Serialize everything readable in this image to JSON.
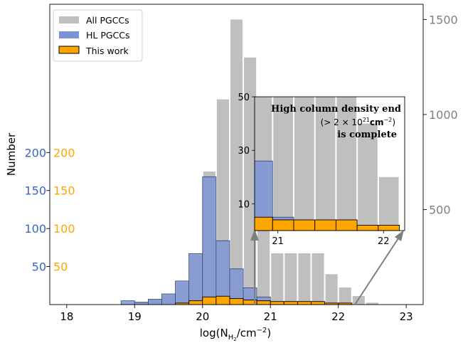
{
  "chart_data": {
    "type": "bar",
    "xlabel_main": "log(N",
    "xlabel_sub": "H",
    "xlabel_subsub": "2",
    "xlabel_tail": "/cm",
    "xlabel_sup": "−2",
    "xlabel_close": ")",
    "ylabel": "Number",
    "x_ticks": [
      "18",
      "19",
      "20",
      "21",
      "22",
      "23"
    ],
    "right_ticks": [
      "500",
      "1000",
      "1500"
    ],
    "hl_ticks": [
      "50",
      "100",
      "150",
      "200"
    ],
    "tw_ticks": [
      "50",
      "100",
      "150",
      "200"
    ],
    "xlim": [
      17.75,
      23.25
    ],
    "ylim_all": [
      0,
      1580
    ],
    "ylim_hl": [
      0,
      395
    ],
    "bin_width": 0.2,
    "colors": {
      "all": "#bfbfbf",
      "hl": "#7b93d6",
      "hl_light": "#a8b8ea",
      "tw": "#ffa500",
      "hl_axis": "#3b63c9",
      "tw_axis": "#ffa500",
      "right_axis": "#7f7f7f",
      "arrow": "#7f7f7f"
    },
    "series": [
      {
        "name": "All PGCCs",
        "x": [
          18.9,
          19.1,
          19.3,
          19.5,
          19.7,
          19.9,
          20.1,
          20.3,
          20.5,
          20.7,
          20.9,
          21.1,
          21.3,
          21.5,
          21.7,
          21.9,
          22.1,
          22.3,
          22.5
        ],
        "values": [
          5,
          15,
          25,
          50,
          115,
          260,
          700,
          1080,
          1500,
          1300,
          750,
          270,
          270,
          270,
          270,
          160,
          90,
          45,
          10
        ]
      },
      {
        "name": "HL PGCCs",
        "x": [
          18.9,
          19.1,
          19.3,
          19.5,
          19.7,
          19.9,
          20.1,
          20.3,
          20.5,
          20.7,
          20.9,
          21.1
        ],
        "values": [
          5,
          3,
          7,
          14,
          31,
          67,
          168,
          84,
          47,
          22,
          10,
          3
        ]
      },
      {
        "name": "This work",
        "x": [
          19.7,
          19.9,
          20.1,
          20.3,
          20.5,
          20.7,
          20.9,
          21.1,
          21.3,
          21.5,
          21.7,
          21.9,
          22.1
        ],
        "values": [
          2,
          5,
          10,
          11,
          8,
          6,
          5,
          4,
          4,
          4,
          4,
          2,
          2
        ]
      }
    ],
    "legend": {
      "placement": "top-left",
      "items": [
        "All PGCCs",
        "HL PGCCs",
        "This work"
      ]
    },
    "inset": {
      "xlim": [
        20.78,
        22.2
      ],
      "ylim": [
        0,
        50
      ],
      "y_ticks": [
        "10",
        "30",
        "50"
      ],
      "x_ticks": [
        "21",
        "22"
      ],
      "annotation": [
        "High column density end",
        "is complete"
      ],
      "annotation_math_pre": "(> 2 × 10",
      "annotation_math_sup": "21",
      "annotation_math_unit": "cm",
      "annotation_math_unit_sup": "−2",
      "annotation_math_close": ")",
      "all_x": [
        20.85,
        21.05,
        21.25,
        21.45,
        21.65,
        21.85,
        22.05
      ],
      "all_values": [
        170,
        105,
        108,
        100,
        95,
        40,
        20
      ],
      "hl_x": [
        20.85,
        21.05
      ],
      "hl_values": [
        26,
        5
      ],
      "tw_x": [
        20.85,
        21.05,
        21.25,
        21.45,
        21.65,
        21.85,
        22.05
      ],
      "tw_values": [
        5,
        4,
        4,
        4,
        4,
        2,
        2
      ]
    }
  }
}
